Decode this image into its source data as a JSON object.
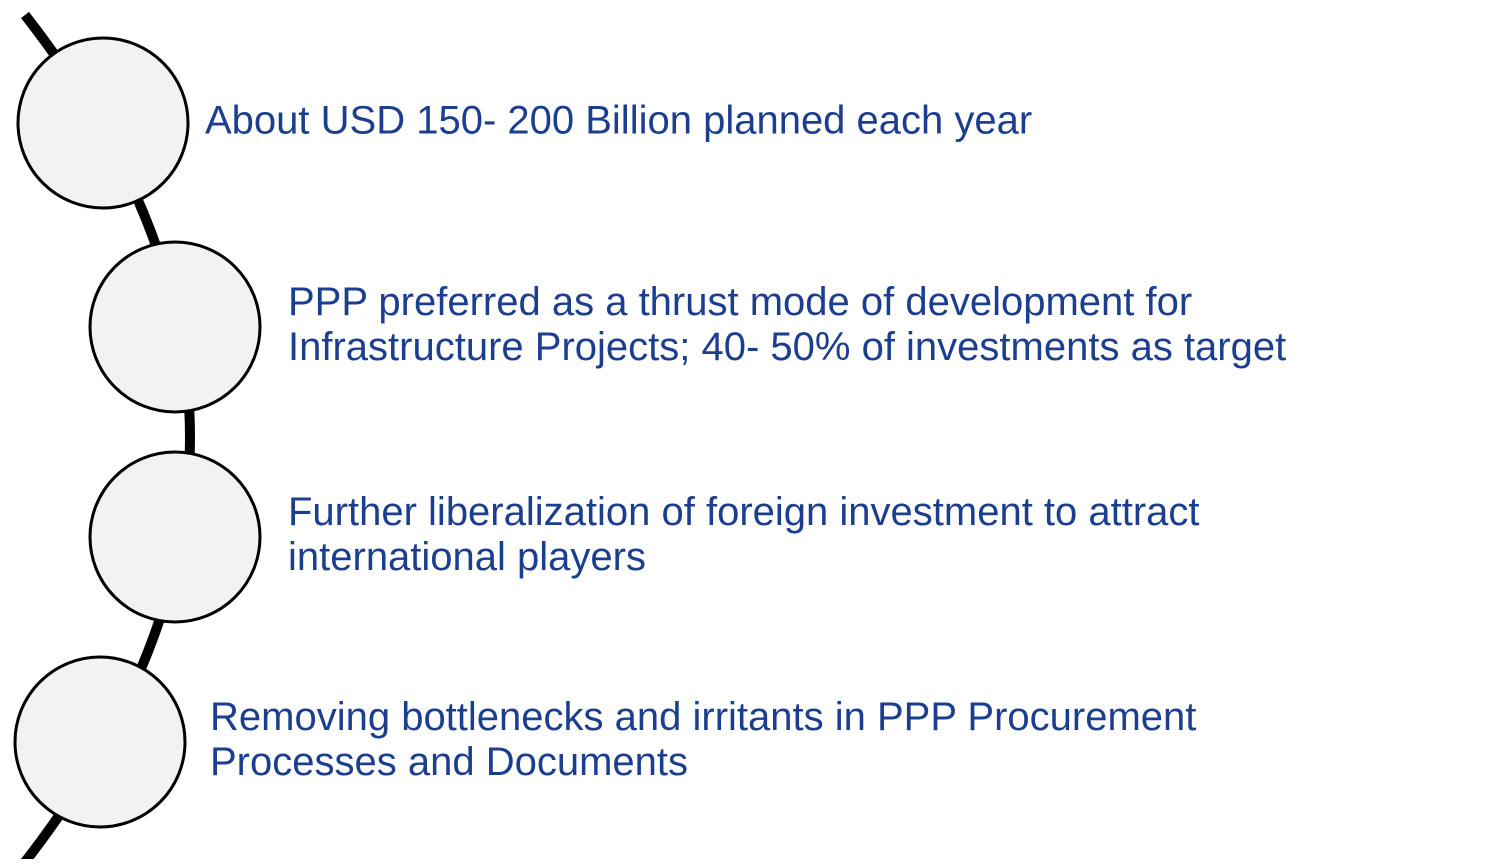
{
  "items": [
    {
      "lines": [
        "About USD 150- 200 Billion planned each year"
      ]
    },
    {
      "lines": [
        "PPP preferred as a thrust mode of development for",
        "Infrastructure Projects; 40- 50% of investments as target"
      ]
    },
    {
      "lines": [
        "Further liberalization of foreign investment to attract",
        "international players"
      ]
    },
    {
      "lines": [
        "Removing bottlenecks and irritants in PPP Procurement",
        "Processes and Documents"
      ]
    }
  ]
}
